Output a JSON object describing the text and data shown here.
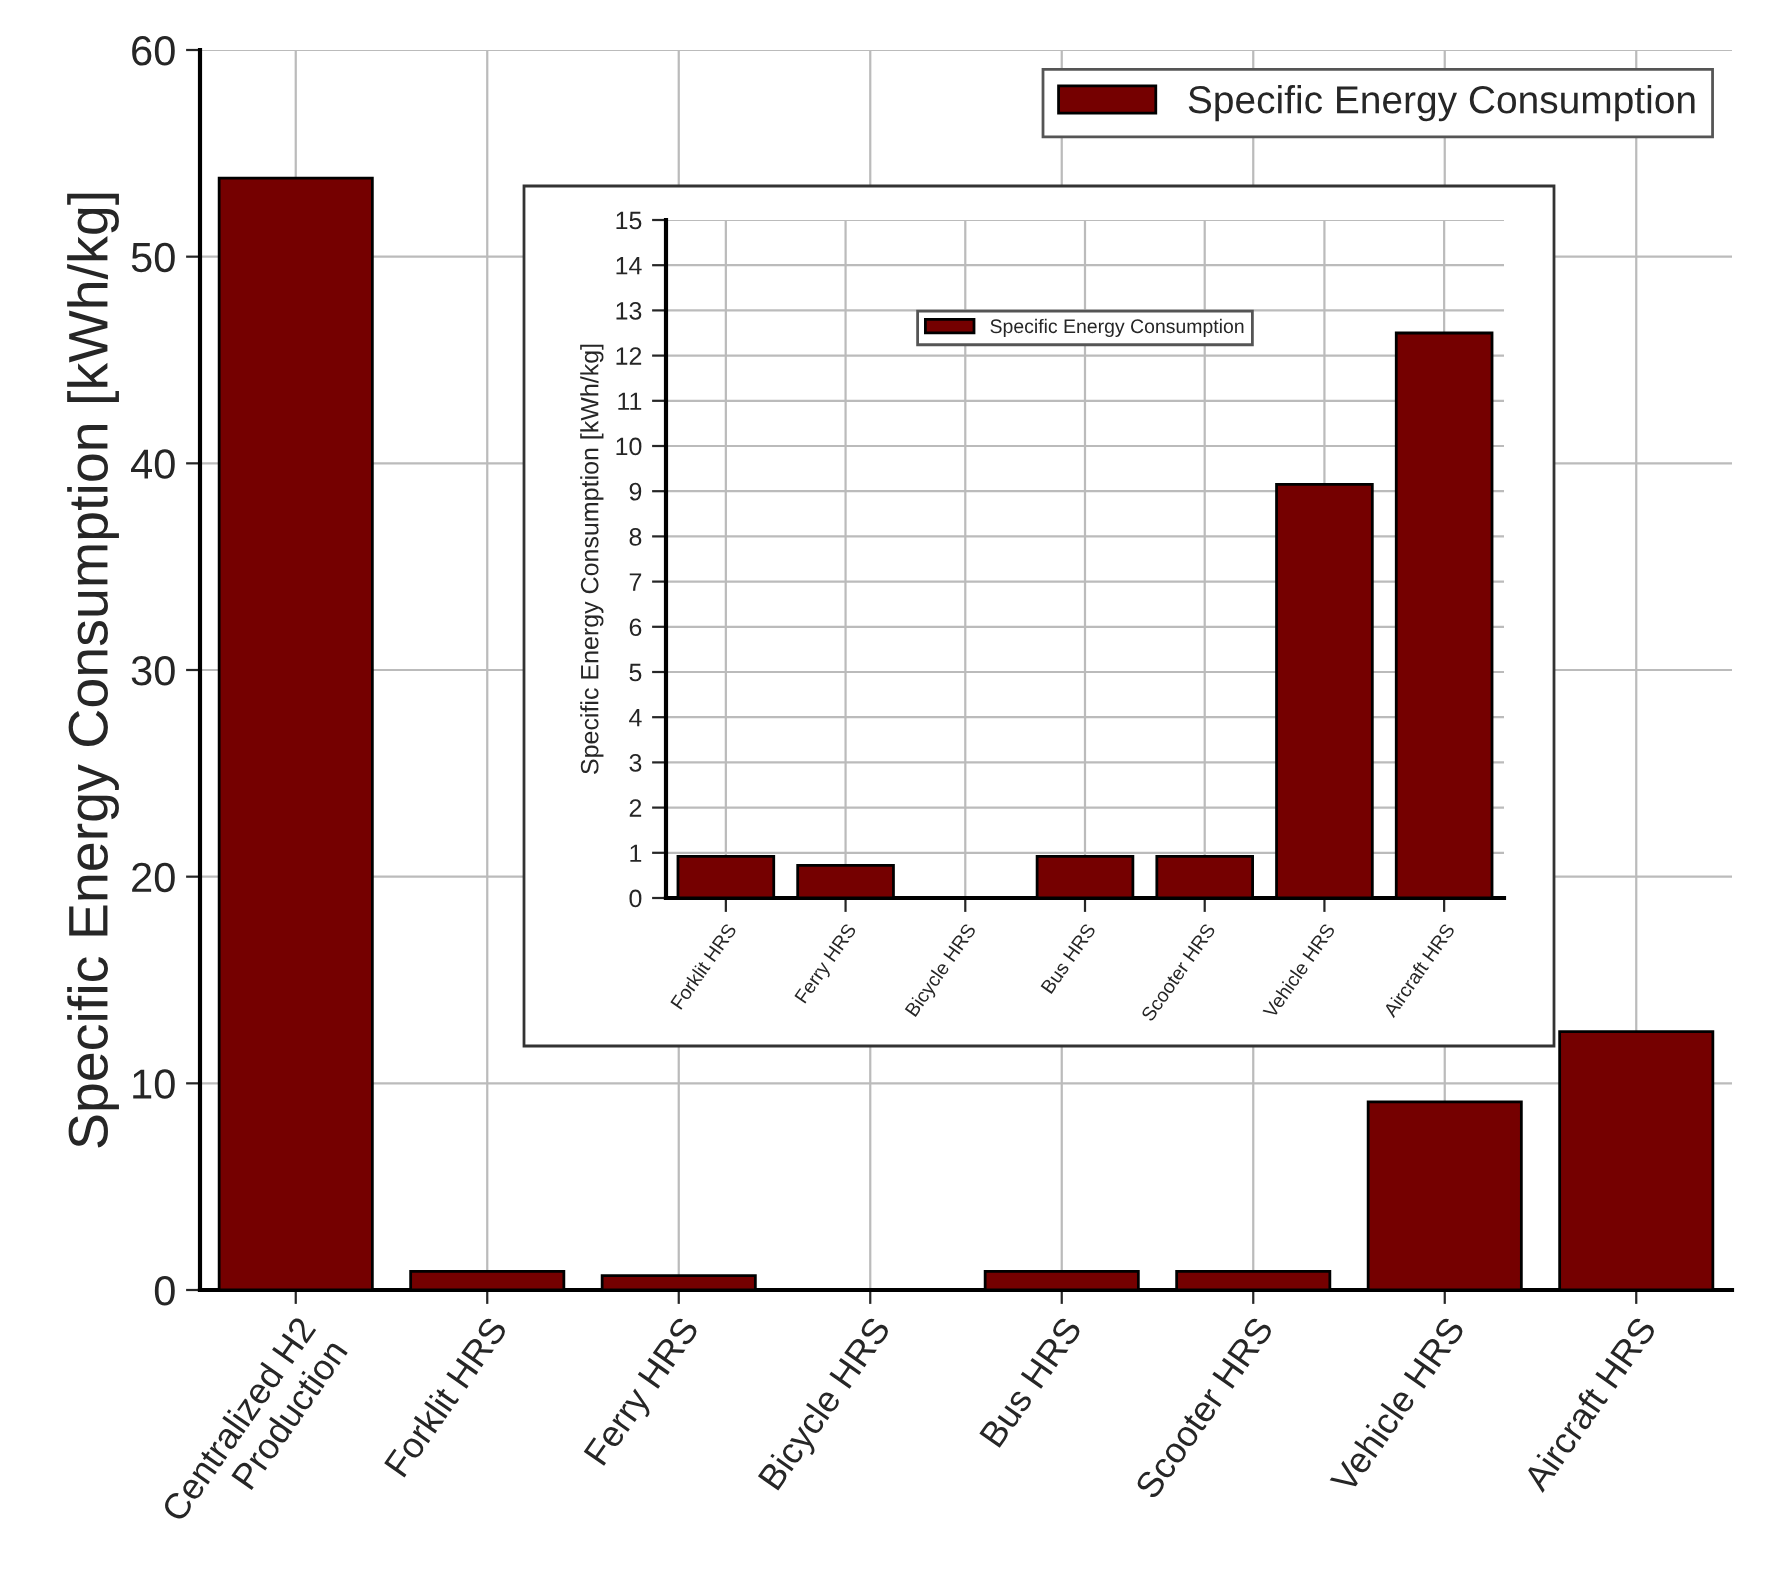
{
  "chart_data": [
    {
      "type": "bar",
      "ylabel": "Specific Energy Consumption [kWh/kg]",
      "categories": [
        "Centralized H2\nProduction",
        "Forklit HRS",
        "Ferry HRS",
        "Bicycle HRS",
        "Bus HRS",
        "Scooter HRS",
        "Vehicle HRS",
        "Aircraft HRS"
      ],
      "series": [
        {
          "name": "Specific Energy Consumption",
          "color": "#750000",
          "values": [
            53.8,
            0.9,
            0.7,
            0,
            0.9,
            0.9,
            9.1,
            12.5
          ]
        }
      ],
      "ylim": [
        0,
        60
      ],
      "yticks": [
        0,
        10,
        20,
        30,
        40,
        50,
        60
      ],
      "grid": true,
      "legend": "top right"
    },
    {
      "type": "bar",
      "ylabel": "Specific Energy Consumption [kWh/kg]",
      "categories": [
        "Forklit HRS",
        "Ferry HRS",
        "Bicycle HRS",
        "Bus HRS",
        "Scooter HRS",
        "Vehicle HRS",
        "Aircraft HRS"
      ],
      "series": [
        {
          "name": "Specific Energy Consumption",
          "color": "#750000",
          "values": [
            0.92,
            0.72,
            0,
            0.92,
            0.92,
            9.15,
            12.5
          ]
        }
      ],
      "ylim": [
        0,
        15
      ],
      "yticks": [
        0,
        1,
        2,
        3,
        4,
        5,
        6,
        7,
        8,
        9,
        10,
        11,
        12,
        13,
        14,
        15
      ],
      "grid": true,
      "legend": "top"
    }
  ]
}
